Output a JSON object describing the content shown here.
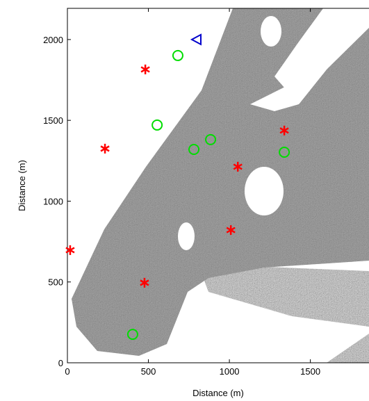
{
  "chart_data": {
    "type": "scatter",
    "xlabel": "Distance (m)",
    "ylabel": "Distance (m)",
    "xlim": [
      0,
      1862
    ],
    "ylim": [
      0,
      2193
    ],
    "xticks": [
      0,
      500,
      1000,
      1500
    ],
    "yticks": [
      0,
      500,
      1000,
      1500,
      2000
    ],
    "series": [
      {
        "color": "#ff0000",
        "marker": "asterisk",
        "x": [
          17,
          481,
          232,
          1052,
          1339,
          1009,
          476
        ],
        "values": [
          697,
          1815,
          1325,
          1213,
          1437,
          821,
          495
        ]
      },
      {
        "color": "#00dd00",
        "marker": "circle",
        "x": [
          682,
          554,
          781,
          884,
          1339,
          403
        ],
        "values": [
          1901,
          1471,
          1320,
          1381,
          1303,
          176
        ]
      },
      {
        "color": "#0000cc",
        "marker": "triangle-left",
        "x": [
          798
        ],
        "values": [
          2000
        ]
      }
    ]
  }
}
